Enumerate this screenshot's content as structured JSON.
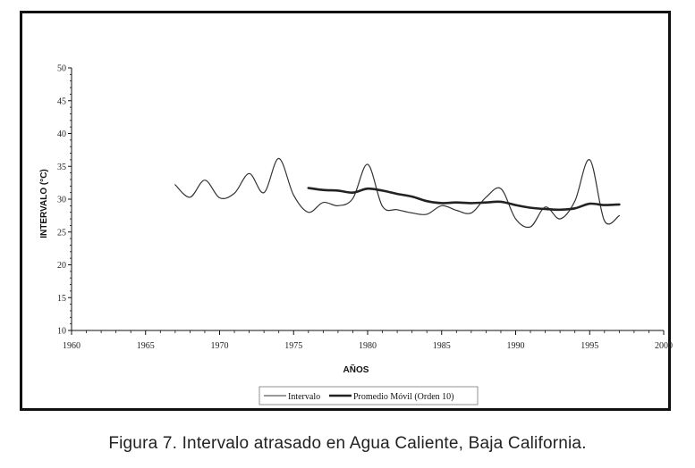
{
  "caption": "Figura 7. Intervalo atrasado en Agua Caliente, Baja California.",
  "chart_data": {
    "type": "line",
    "title": "",
    "xlabel": "AÑOS",
    "ylabel": "INTERVALO (°C)",
    "xlim": [
      1960,
      2000
    ],
    "ylim": [
      10,
      50
    ],
    "x_ticks": [
      "1960",
      "1965",
      "1970",
      "1975",
      "1980",
      "1985",
      "1990",
      "1995",
      "2000"
    ],
    "y_ticks": [
      "10",
      "15",
      "20",
      "25",
      "30",
      "35",
      "40",
      "45",
      "50"
    ],
    "grid": false,
    "legend_position": "bottom-center",
    "series": [
      {
        "name": "Intervalo",
        "color": "#333333",
        "style": "thin",
        "x": [
          1967,
          1968,
          1969,
          1970,
          1971,
          1972,
          1973,
          1974,
          1975,
          1976,
          1977,
          1978,
          1979,
          1980,
          1981,
          1982,
          1983,
          1984,
          1985,
          1986,
          1987,
          1988,
          1989,
          1990,
          1991,
          1992,
          1993,
          1994,
          1995,
          1996,
          1997
        ],
        "y": [
          32.2,
          30.3,
          32.9,
          30.2,
          30.9,
          33.9,
          31.0,
          36.2,
          30.6,
          28.0,
          29.5,
          29.0,
          30.1,
          35.3,
          28.9,
          28.4,
          27.9,
          27.7,
          29.0,
          28.3,
          27.9,
          30.3,
          31.6,
          27.0,
          25.8,
          28.8,
          27.0,
          29.7,
          36.0,
          26.7,
          27.5
        ]
      },
      {
        "name": "Promedio Móvil (Orden 10)",
        "color": "#222222",
        "style": "thick",
        "x": [
          1976,
          1977,
          1978,
          1979,
          1980,
          1981,
          1982,
          1983,
          1984,
          1985,
          1986,
          1987,
          1988,
          1989,
          1990,
          1991,
          1992,
          1993,
          1994,
          1995,
          1996,
          1997
        ],
        "y": [
          31.7,
          31.4,
          31.3,
          31.0,
          31.6,
          31.3,
          30.8,
          30.4,
          29.7,
          29.4,
          29.5,
          29.4,
          29.5,
          29.6,
          29.1,
          28.7,
          28.5,
          28.4,
          28.6,
          29.3,
          29.1,
          29.2
        ]
      }
    ]
  }
}
